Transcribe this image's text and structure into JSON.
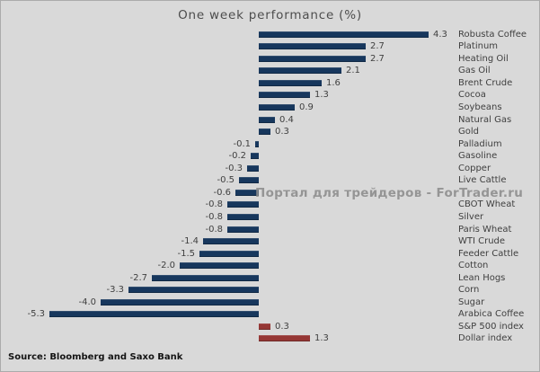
{
  "title": "One week performance (%)",
  "source": "Source: Bloomberg and Saxo Bank",
  "watermark": "Портал для трейдеров - ForTrader.ru",
  "chart_data": {
    "type": "bar",
    "orientation": "horizontal",
    "title": "One week performance (%)",
    "xlabel": "",
    "ylabel": "",
    "xlim": [
      -5.5,
      4.5
    ],
    "grid": false,
    "legend": "none",
    "colors": {
      "commodity": "#17375d",
      "index": "#953735"
    },
    "items": [
      {
        "label": "Robusta Coffee",
        "value": 4.3,
        "group": "commodity"
      },
      {
        "label": "Platinum",
        "value": 2.7,
        "group": "commodity"
      },
      {
        "label": "Heating Oil",
        "value": 2.7,
        "group": "commodity"
      },
      {
        "label": "Gas Oil",
        "value": 2.1,
        "group": "commodity"
      },
      {
        "label": "Brent Crude",
        "value": 1.6,
        "group": "commodity"
      },
      {
        "label": "Cocoa",
        "value": 1.3,
        "group": "commodity"
      },
      {
        "label": "Soybeans",
        "value": 0.9,
        "group": "commodity"
      },
      {
        "label": "Natural Gas",
        "value": 0.4,
        "group": "commodity"
      },
      {
        "label": "Gold",
        "value": 0.3,
        "group": "commodity"
      },
      {
        "label": "Palladium",
        "value": -0.1,
        "group": "commodity"
      },
      {
        "label": "Gasoline",
        "value": -0.2,
        "group": "commodity"
      },
      {
        "label": "Copper",
        "value": -0.3,
        "group": "commodity"
      },
      {
        "label": "Live Cattle",
        "value": -0.5,
        "group": "commodity"
      },
      {
        "label": "",
        "value": -0.6,
        "group": "commodity",
        "label_obscured_by_watermark": true
      },
      {
        "label": "CBOT Wheat",
        "value": -0.8,
        "group": "commodity"
      },
      {
        "label": "Silver",
        "value": -0.8,
        "group": "commodity"
      },
      {
        "label": "Paris Wheat",
        "value": -0.8,
        "group": "commodity"
      },
      {
        "label": "WTI Crude",
        "value": -1.4,
        "group": "commodity"
      },
      {
        "label": "Feeder Cattle",
        "value": -1.5,
        "group": "commodity"
      },
      {
        "label": "Cotton",
        "value": -2.0,
        "group": "commodity"
      },
      {
        "label": "Lean Hogs",
        "value": -2.7,
        "group": "commodity"
      },
      {
        "label": "Corn",
        "value": -3.3,
        "group": "commodity"
      },
      {
        "label": "Sugar",
        "value": -4.0,
        "group": "commodity"
      },
      {
        "label": "Arabica Coffee",
        "value": -5.3,
        "group": "commodity"
      },
      {
        "label": "S&P 500 index",
        "value": 0.3,
        "group": "index"
      },
      {
        "label": "Dollar index",
        "value": 1.3,
        "group": "index"
      }
    ]
  }
}
